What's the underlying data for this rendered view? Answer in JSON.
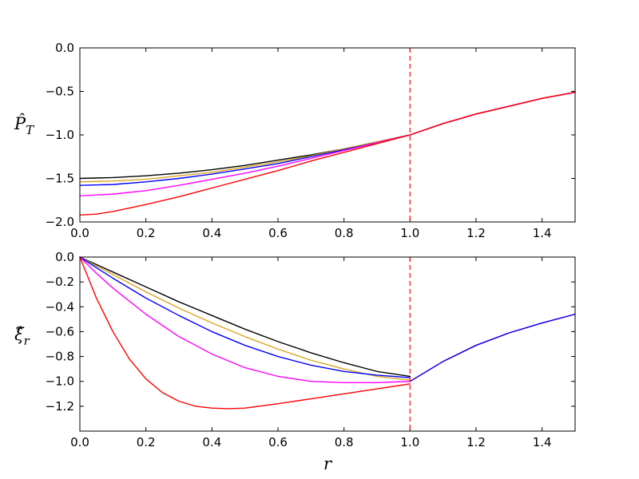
{
  "chart_data": [
    {
      "type": "line",
      "title": "",
      "xlabel": "r",
      "ylabel": "P̂_T",
      "xlim": [
        0.0,
        1.5
      ],
      "ylim": [
        -2.0,
        0.0
      ],
      "xticks": [
        "0.0",
        "0.2",
        "0.4",
        "0.6",
        "0.8",
        "1.0",
        "1.2",
        "1.4"
      ],
      "yticks": [
        "0.0",
        "−0.5",
        "−1.0",
        "−1.5",
        "−2.0"
      ],
      "grid": false,
      "annotations": [
        {
          "kind": "vertical-dashed-line",
          "x": 1.0,
          "color": "#ff0000"
        }
      ],
      "series": [
        {
          "color": "#000000",
          "x": [
            0.0,
            0.1,
            0.2,
            0.3,
            0.4,
            0.5,
            0.6,
            0.7,
            0.8,
            0.9,
            1.0,
            1.1,
            1.2,
            1.3,
            1.4,
            1.5
          ],
          "y": [
            -1.5,
            -1.49,
            -1.47,
            -1.44,
            -1.4,
            -1.35,
            -1.29,
            -1.23,
            -1.16,
            -1.08,
            -1.0,
            -0.87,
            -0.76,
            -0.67,
            -0.58,
            -0.51
          ]
        },
        {
          "color": "#daa520",
          "x": [
            0.0,
            0.1,
            0.2,
            0.3,
            0.4,
            0.5,
            0.6,
            0.7,
            0.8,
            0.9,
            1.0,
            1.1,
            1.2,
            1.3,
            1.4,
            1.5
          ],
          "y": [
            -1.54,
            -1.53,
            -1.51,
            -1.47,
            -1.43,
            -1.37,
            -1.31,
            -1.24,
            -1.16,
            -1.08,
            -1.0,
            -0.87,
            -0.76,
            -0.67,
            -0.58,
            -0.51
          ]
        },
        {
          "color": "#0000ff",
          "x": [
            0.0,
            0.1,
            0.2,
            0.3,
            0.4,
            0.5,
            0.6,
            0.7,
            0.8,
            0.9,
            1.0,
            1.1,
            1.2,
            1.3,
            1.4,
            1.5
          ],
          "y": [
            -1.58,
            -1.57,
            -1.54,
            -1.5,
            -1.45,
            -1.39,
            -1.33,
            -1.25,
            -1.17,
            -1.09,
            -1.0,
            -0.87,
            -0.76,
            -0.67,
            -0.58,
            -0.51
          ]
        },
        {
          "color": "#ff00ff",
          "x": [
            0.0,
            0.1,
            0.2,
            0.3,
            0.4,
            0.5,
            0.6,
            0.7,
            0.8,
            0.9,
            1.0,
            1.1,
            1.2,
            1.3,
            1.4,
            1.5
          ],
          "y": [
            -1.7,
            -1.68,
            -1.64,
            -1.58,
            -1.51,
            -1.44,
            -1.36,
            -1.27,
            -1.18,
            -1.09,
            -1.0,
            -0.87,
            -0.76,
            -0.67,
            -0.58,
            -0.51
          ]
        },
        {
          "color": "#ff0000",
          "x": [
            0.0,
            0.05,
            0.1,
            0.2,
            0.3,
            0.4,
            0.5,
            0.6,
            0.7,
            0.8,
            0.9,
            1.0,
            1.1,
            1.2,
            1.3,
            1.4,
            1.5
          ],
          "y": [
            -1.92,
            -1.91,
            -1.88,
            -1.8,
            -1.71,
            -1.61,
            -1.51,
            -1.41,
            -1.3,
            -1.2,
            -1.1,
            -1.0,
            -0.87,
            -0.76,
            -0.67,
            -0.58,
            -0.51
          ]
        }
      ]
    },
    {
      "type": "line",
      "title": "",
      "xlabel": "r",
      "ylabel": "ξ̂_r",
      "xlim": [
        0.0,
        1.5
      ],
      "ylim": [
        -1.4,
        0.0
      ],
      "xticks": [
        "0.0",
        "0.2",
        "0.4",
        "0.6",
        "0.8",
        "1.0",
        "1.2",
        "1.4"
      ],
      "yticks": [
        "0.0",
        "−0.2",
        "−0.4",
        "−0.6",
        "−0.8",
        "−1.0",
        "−1.2"
      ],
      "grid": false,
      "annotations": [
        {
          "kind": "vertical-dashed-line",
          "x": 1.0,
          "color": "#ff0000"
        }
      ],
      "series": [
        {
          "color": "#000000",
          "x": [
            0.0,
            0.1,
            0.2,
            0.3,
            0.4,
            0.5,
            0.6,
            0.7,
            0.8,
            0.9,
            1.0
          ],
          "y": [
            0.0,
            -0.12,
            -0.24,
            -0.36,
            -0.47,
            -0.58,
            -0.68,
            -0.77,
            -0.85,
            -0.92,
            -0.96
          ]
        },
        {
          "color": "#daa520",
          "x": [
            0.0,
            0.1,
            0.2,
            0.3,
            0.4,
            0.5,
            0.6,
            0.7,
            0.8,
            0.9,
            1.0
          ],
          "y": [
            0.0,
            -0.14,
            -0.28,
            -0.41,
            -0.53,
            -0.64,
            -0.74,
            -0.83,
            -0.9,
            -0.96,
            -0.99
          ]
        },
        {
          "color": "#0000ff",
          "x": [
            0.0,
            0.1,
            0.2,
            0.3,
            0.4,
            0.5,
            0.6,
            0.7,
            0.8,
            0.9,
            1.0
          ],
          "y": [
            0.0,
            -0.17,
            -0.33,
            -0.47,
            -0.6,
            -0.71,
            -0.8,
            -0.87,
            -0.92,
            -0.95,
            -0.97
          ]
        },
        {
          "color": "#ff00ff",
          "x": [
            0.0,
            0.05,
            0.1,
            0.2,
            0.3,
            0.4,
            0.5,
            0.6,
            0.7,
            0.8,
            0.9,
            1.0
          ],
          "y": [
            0.0,
            -0.13,
            -0.25,
            -0.46,
            -0.64,
            -0.78,
            -0.89,
            -0.96,
            -1.0,
            -1.01,
            -1.01,
            -1.0
          ]
        },
        {
          "color": "#ff0000",
          "x": [
            0.0,
            0.05,
            0.1,
            0.15,
            0.2,
            0.25,
            0.3,
            0.35,
            0.4,
            0.45,
            0.5,
            0.6,
            0.7,
            0.8,
            0.9,
            1.0
          ],
          "y": [
            0.0,
            -0.33,
            -0.6,
            -0.82,
            -0.98,
            -1.09,
            -1.16,
            -1.2,
            -1.215,
            -1.22,
            -1.215,
            -1.18,
            -1.14,
            -1.1,
            -1.06,
            -1.02
          ]
        },
        {
          "color": "#ff0000",
          "x": [
            1.0,
            1.1,
            1.2,
            1.3,
            1.4,
            1.5
          ],
          "y": [
            -1.0,
            -0.84,
            -0.71,
            -0.61,
            -0.53,
            -0.46
          ]
        },
        {
          "color": "#0000ff",
          "x": [
            1.0,
            1.1,
            1.2,
            1.3,
            1.4,
            1.5
          ],
          "y": [
            -1.0,
            -0.84,
            -0.71,
            -0.61,
            -0.53,
            -0.46
          ]
        }
      ]
    }
  ]
}
